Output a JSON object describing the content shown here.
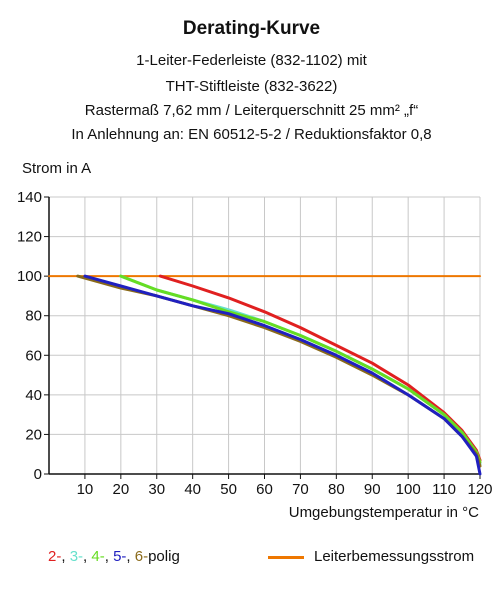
{
  "header": {
    "title": "Derating-Kurve",
    "subtitle_1": "1-Leiter-Federleiste (832-1102) mit",
    "subtitle_2": "THT-Stiftleiste (832-3622)",
    "subtitle_3": "Rastermaß 7,62 mm / Leiterquerschnitt 25 mm² „f“",
    "subtitle_4": "In Anlehnung an: EN 60512-5-2 / Reduktionsfaktor 0,8"
  },
  "legend": {
    "poles": [
      {
        "text": "2-",
        "color": "#e02020"
      },
      {
        "text": ", ",
        "color": "#111111"
      },
      {
        "text": "3-",
        "color": "#66e0cc"
      },
      {
        "text": ", ",
        "color": "#111111"
      },
      {
        "text": "4-",
        "color": "#66dd22"
      },
      {
        "text": ", ",
        "color": "#111111"
      },
      {
        "text": "5-",
        "color": "#2020c0"
      },
      {
        "text": ", ",
        "color": "#111111"
      },
      {
        "text": "6-",
        "color": "#8a6a1a"
      },
      {
        "text": "polig",
        "color": "#111111"
      }
    ],
    "rated_current_label": "Leiterbemessungsstrom",
    "rated_current_color": "#ee7700"
  },
  "chart_data": {
    "type": "line",
    "xlabel": "Umgebungstemperatur in °C",
    "ylabel": "Strom in A",
    "xlim": [
      0,
      120
    ],
    "ylim": [
      0,
      140
    ],
    "xticks": [
      10,
      20,
      30,
      40,
      50,
      60,
      70,
      80,
      90,
      100,
      110,
      120
    ],
    "yticks": [
      0,
      20,
      40,
      60,
      80,
      100,
      120,
      140
    ],
    "grid": true,
    "series": [
      {
        "name": "Leiterbemessungsstrom",
        "color": "#ee7700",
        "x": [
          0,
          120
        ],
        "y": [
          100,
          100
        ]
      },
      {
        "name": "2-polig",
        "color": "#e02020",
        "x": [
          31,
          40,
          50,
          60,
          70,
          80,
          90,
          100,
          110,
          115,
          119,
          120
        ],
        "y": [
          100,
          95,
          89,
          82,
          74,
          65,
          56,
          45,
          31,
          22,
          12,
          7
        ]
      },
      {
        "name": "3-polig",
        "color": "#66e0cc",
        "x": [
          20,
          30,
          40,
          50,
          60,
          70,
          80,
          90,
          100,
          110,
          115,
          119,
          120
        ],
        "y": [
          100,
          93,
          88,
          83,
          77,
          70,
          62,
          53,
          43,
          30,
          21,
          11,
          5
        ]
      },
      {
        "name": "4-polig",
        "color": "#66dd22",
        "x": [
          20,
          30,
          40,
          50,
          60,
          70,
          80,
          90,
          100,
          110,
          115,
          119,
          120
        ],
        "y": [
          100,
          93,
          88,
          82,
          77,
          70,
          62,
          53,
          43,
          30,
          21,
          11,
          6
        ]
      },
      {
        "name": "6-polig",
        "color": "#8a6a1a",
        "x": [
          8,
          20,
          30,
          40,
          50,
          60,
          70,
          80,
          90,
          100,
          110,
          115,
          119,
          120
        ],
        "y": [
          100,
          94,
          90,
          85,
          80,
          74,
          67,
          59,
          50,
          40,
          28,
          19,
          10,
          4
        ]
      },
      {
        "name": "5-polig",
        "color": "#2020c0",
        "x": [
          10,
          20,
          30,
          40,
          50,
          60,
          70,
          80,
          90,
          100,
          110,
          115,
          119,
          120
        ],
        "y": [
          100,
          95,
          90,
          85,
          81,
          75,
          68,
          60,
          51,
          40,
          28,
          19,
          9,
          0
        ]
      }
    ]
  }
}
